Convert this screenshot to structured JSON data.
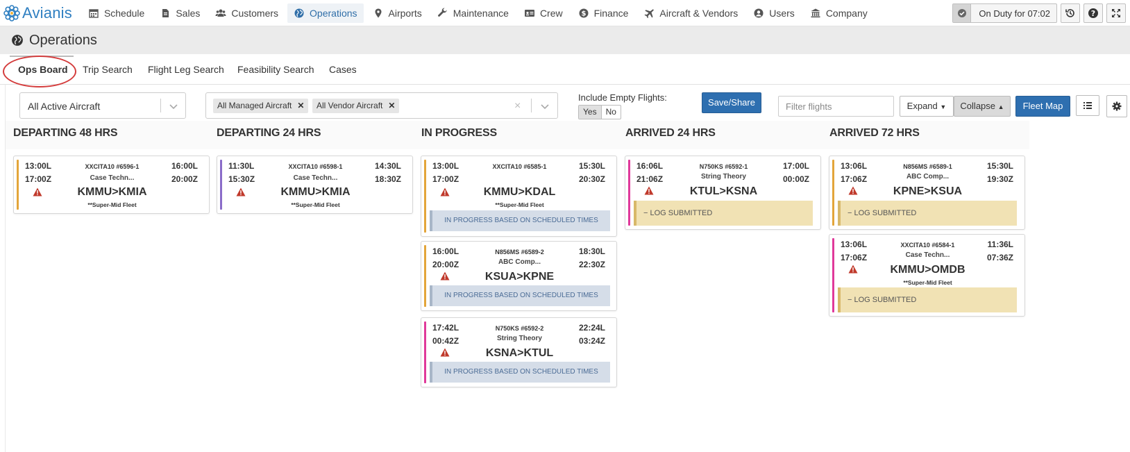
{
  "brand": {
    "name": "Avianis"
  },
  "nav": {
    "items": [
      {
        "label": "Schedule",
        "icon": "calendar-icon"
      },
      {
        "label": "Sales",
        "icon": "document-icon"
      },
      {
        "label": "Customers",
        "icon": "users-icon"
      },
      {
        "label": "Operations",
        "icon": "globe-icon",
        "active": true
      },
      {
        "label": "Airports",
        "icon": "map-marker-icon"
      },
      {
        "label": "Maintenance",
        "icon": "wrench-icon"
      },
      {
        "label": "Crew",
        "icon": "id-card-icon"
      },
      {
        "label": "Finance",
        "icon": "dollar-icon"
      },
      {
        "label": "Aircraft & Vendors",
        "icon": "plane-icon"
      },
      {
        "label": "Users",
        "icon": "user-circle-icon"
      },
      {
        "label": "Company",
        "icon": "bank-icon"
      }
    ],
    "duty_status": "On Duty for 07:02"
  },
  "page": {
    "title": "Operations"
  },
  "tabs": [
    {
      "label": "Ops Board",
      "active": true
    },
    {
      "label": "Trip Search"
    },
    {
      "label": "Flight Leg Search"
    },
    {
      "label": "Feasibility Search"
    },
    {
      "label": "Cases"
    }
  ],
  "filters": {
    "aircraft_select": "All Active Aircraft",
    "tags": [
      "All Managed Aircraft",
      "All Vendor Aircraft"
    ],
    "clear_symbol": "×",
    "include_empty_label": "Include Empty Flights:",
    "yes": "Yes",
    "no": "No",
    "save_share": "Save/Share",
    "filter_placeholder": "Filter flights",
    "expand": "Expand",
    "collapse": "Collapse",
    "fleet_map": "Fleet Map"
  },
  "columns": [
    {
      "title": "DEPARTING 48 HRS"
    },
    {
      "title": "DEPARTING 24 HRS"
    },
    {
      "title": "IN PROGRESS"
    },
    {
      "title": "ARRIVED 24 HRS"
    },
    {
      "title": "ARRIVED 72 HRS"
    }
  ],
  "cards": [
    {
      "dep_l": "13:00L",
      "dep_z": "17:00Z",
      "arr_l": "16:00L",
      "arr_z": "20:00Z",
      "tail": "XXCITA10 #6596-1",
      "customer": "Case Techn...",
      "route": "KMMU>KMIA",
      "fleet": "**Super-Mid Fleet",
      "stripe": "#e3a53a",
      "status": ""
    },
    {
      "dep_l": "11:30L",
      "dep_z": "15:30Z",
      "arr_l": "14:30L",
      "arr_z": "18:30Z",
      "tail": "XXCITA10 #6598-1",
      "customer": "Case Techn...",
      "route": "KMMU>KMIA",
      "fleet": "**Super-Mid Fleet",
      "stripe": "#8a6cc9",
      "status": ""
    },
    {
      "dep_l": "13:00L",
      "dep_z": "17:00Z",
      "arr_l": "15:30L",
      "arr_z": "20:30Z",
      "tail": "XXCITA10 #6585-1",
      "customer": "",
      "route": "KMMU>KDAL",
      "fleet": "**Super-Mid Fleet",
      "stripe": "#e3a53a",
      "status": "IN PROGRESS BASED ON SCHEDULED TIMES"
    },
    {
      "dep_l": "16:00L",
      "dep_z": "20:00Z",
      "arr_l": "18:30L",
      "arr_z": "22:30Z",
      "tail": "N856MS #6589-2",
      "customer": "ABC Comp...",
      "route": "KSUA>KPNE",
      "fleet": "",
      "stripe": "#e3a53a",
      "status": "IN PROGRESS BASED ON SCHEDULED TIMES"
    },
    {
      "dep_l": "17:42L",
      "dep_z": "00:42Z",
      "arr_l": "22:24L",
      "arr_z": "03:24Z",
      "tail": "N750KS #6592-2",
      "customer": "String Theory",
      "route": "KSNA>KTUL",
      "fleet": "",
      "stripe": "#e0399a",
      "status": "IN PROGRESS BASED ON SCHEDULED TIMES"
    },
    {
      "dep_l": "16:06L",
      "dep_z": "21:06Z",
      "arr_l": "17:00L",
      "arr_z": "00:00Z",
      "tail": "N750KS #6592-1",
      "customer": "String Theory",
      "route": "KTUL>KSNA",
      "fleet": "",
      "stripe": "#e0399a",
      "status": "− LOG SUBMITTED"
    },
    {
      "dep_l": "13:06L",
      "dep_z": "17:06Z",
      "arr_l": "15:30L",
      "arr_z": "19:30Z",
      "tail": "N856MS #6589-1",
      "customer": "ABC Comp...",
      "route": "KPNE>KSUA",
      "fleet": "",
      "stripe": "#e3a53a",
      "status": "− LOG SUBMITTED"
    },
    {
      "dep_l": "13:06L",
      "dep_z": "17:06Z",
      "arr_l": "11:36L",
      "arr_z": "07:36Z",
      "tail": "XXCITA10 #6584-1",
      "customer": "Case Techn...",
      "route": "KMMU>OMDB",
      "fleet": "**Super-Mid Fleet",
      "stripe": "#e0399a",
      "status": "− LOG SUBMITTED"
    }
  ]
}
